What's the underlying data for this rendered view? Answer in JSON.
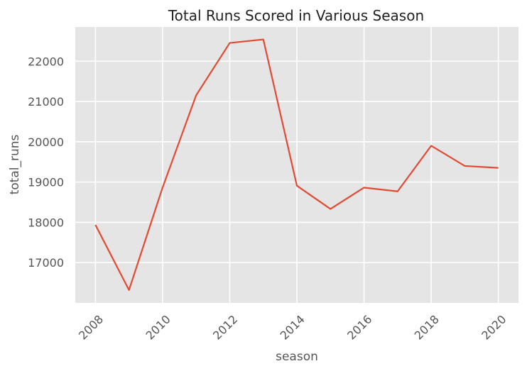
{
  "chart_data": {
    "type": "line",
    "title": "Total Runs  Scored in Various Season",
    "xlabel": "season",
    "ylabel": "total_runs",
    "x": [
      2008,
      2009,
      2010,
      2011,
      2012,
      2013,
      2014,
      2015,
      2016,
      2017,
      2018,
      2019,
      2020
    ],
    "series": [
      {
        "values": [
          17937,
          16320,
          18864,
          21154,
          22453,
          22541,
          18909,
          18332,
          18862,
          18769,
          19901,
          19400,
          19352
        ]
      }
    ],
    "xlim": [
      2007.4,
      2020.6
    ],
    "ylim": [
      16000,
      22850
    ],
    "x_ticks": [
      "2008",
      "2010",
      "2012",
      "2014",
      "2016",
      "2018",
      "2020"
    ],
    "y_ticks": [
      "17000",
      "18000",
      "19000",
      "20000",
      "21000",
      "22000"
    ],
    "grid": true,
    "colors": {
      "line": "#e24a33",
      "plot_bg": "#e5e5e5",
      "grid": "#ffffff"
    }
  }
}
